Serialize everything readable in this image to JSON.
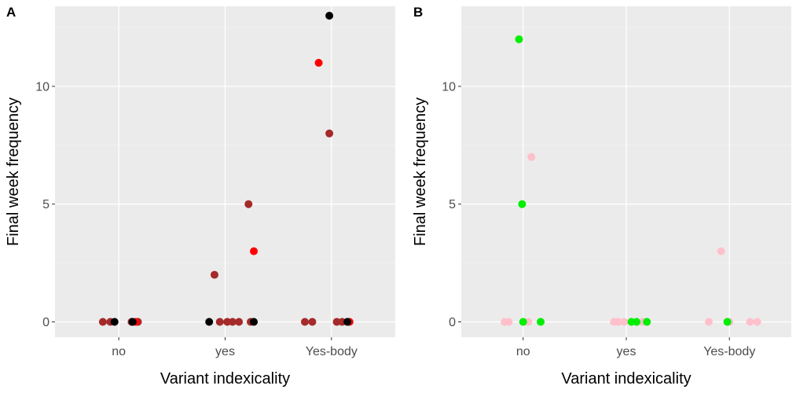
{
  "chart_data": [
    {
      "type": "scatter",
      "panel": "A",
      "xlabel": "Variant indexicality",
      "ylabel": "Final week frequency",
      "categories": [
        "no",
        "yes",
        "Yes-body"
      ],
      "yticks": [
        0,
        5,
        10
      ],
      "ylim": [
        -0.65,
        13.4
      ],
      "grid": true,
      "background": "#ebebeb",
      "series": [
        {
          "name": "brown",
          "color": "#a52a2a",
          "points": [
            {
              "x": 0.85,
              "y": 0
            },
            {
              "x": 0.92,
              "y": 0
            },
            {
              "x": 1.12,
              "y": 0
            },
            {
              "x": 1.18,
              "y": 0
            },
            {
              "x": 1.9,
              "y": 2
            },
            {
              "x": 1.95,
              "y": 0
            },
            {
              "x": 2.02,
              "y": 0
            },
            {
              "x": 2.07,
              "y": 0
            },
            {
              "x": 2.13,
              "y": 0
            },
            {
              "x": 2.22,
              "y": 5
            },
            {
              "x": 2.24,
              "y": 0
            },
            {
              "x": 2.75,
              "y": 0
            },
            {
              "x": 2.82,
              "y": 0
            },
            {
              "x": 2.98,
              "y": 8
            },
            {
              "x": 3.05,
              "y": 0
            },
            {
              "x": 3.1,
              "y": 0
            }
          ]
        },
        {
          "name": "red",
          "color": "#ff0000",
          "points": [
            {
              "x": 1.16,
              "y": 0
            },
            {
              "x": 2.27,
              "y": 3
            },
            {
              "x": 2.88,
              "y": 11
            },
            {
              "x": 3.17,
              "y": 0
            }
          ]
        },
        {
          "name": "black",
          "color": "#000000",
          "points": [
            {
              "x": 0.96,
              "y": 0
            },
            {
              "x": 1.13,
              "y": 0
            },
            {
              "x": 1.85,
              "y": 0
            },
            {
              "x": 2.27,
              "y": 0
            },
            {
              "x": 2.98,
              "y": 13
            },
            {
              "x": 3.15,
              "y": 0
            }
          ]
        }
      ]
    },
    {
      "type": "scatter",
      "panel": "B",
      "xlabel": "Variant indexicality",
      "ylabel": "Final week frequency",
      "categories": [
        "no",
        "yes",
        "Yes-body"
      ],
      "yticks": [
        0,
        5,
        10
      ],
      "ylim": [
        -0.65,
        13.4
      ],
      "grid": true,
      "background": "#ebebeb",
      "series": [
        {
          "name": "pink",
          "color": "#ffc0cb",
          "points": [
            {
              "x": 0.82,
              "y": 0
            },
            {
              "x": 0.86,
              "y": 0
            },
            {
              "x": 1.05,
              "y": 0
            },
            {
              "x": 1.08,
              "y": 7
            },
            {
              "x": 1.88,
              "y": 0
            },
            {
              "x": 1.92,
              "y": 0
            },
            {
              "x": 1.98,
              "y": 0
            },
            {
              "x": 2.1,
              "y": 0
            },
            {
              "x": 2.16,
              "y": 0
            },
            {
              "x": 2.8,
              "y": 0
            },
            {
              "x": 2.92,
              "y": 3
            },
            {
              "x": 3.0,
              "y": 0
            },
            {
              "x": 3.2,
              "y": 0
            },
            {
              "x": 3.27,
              "y": 0
            }
          ]
        },
        {
          "name": "green",
          "color": "#00ee00",
          "points": [
            {
              "x": 0.96,
              "y": 12
            },
            {
              "x": 0.99,
              "y": 5
            },
            {
              "x": 1.0,
              "y": 0
            },
            {
              "x": 1.17,
              "y": 0
            },
            {
              "x": 2.05,
              "y": 0
            },
            {
              "x": 2.1,
              "y": 0
            },
            {
              "x": 2.2,
              "y": 0
            },
            {
              "x": 2.98,
              "y": 0
            }
          ]
        }
      ]
    }
  ]
}
